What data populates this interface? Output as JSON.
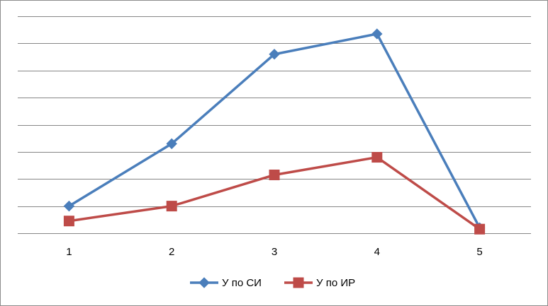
{
  "chart_data": {
    "type": "line",
    "categories": [
      "1",
      "2",
      "3",
      "4",
      "5"
    ],
    "ylim": [
      0,
      8
    ],
    "grid": true,
    "y_tick_labels_shown": false,
    "legend_position": "bottom",
    "series": [
      {
        "name": "У по СИ",
        "values": [
          1.0,
          3.3,
          6.6,
          7.35,
          0.2
        ],
        "color": "#4a7ebb",
        "marker": "diamond"
      },
      {
        "name": "У по ИР",
        "values": [
          0.45,
          1.0,
          2.15,
          2.8,
          0.15
        ],
        "color": "#be4b48",
        "marker": "square"
      }
    ]
  }
}
